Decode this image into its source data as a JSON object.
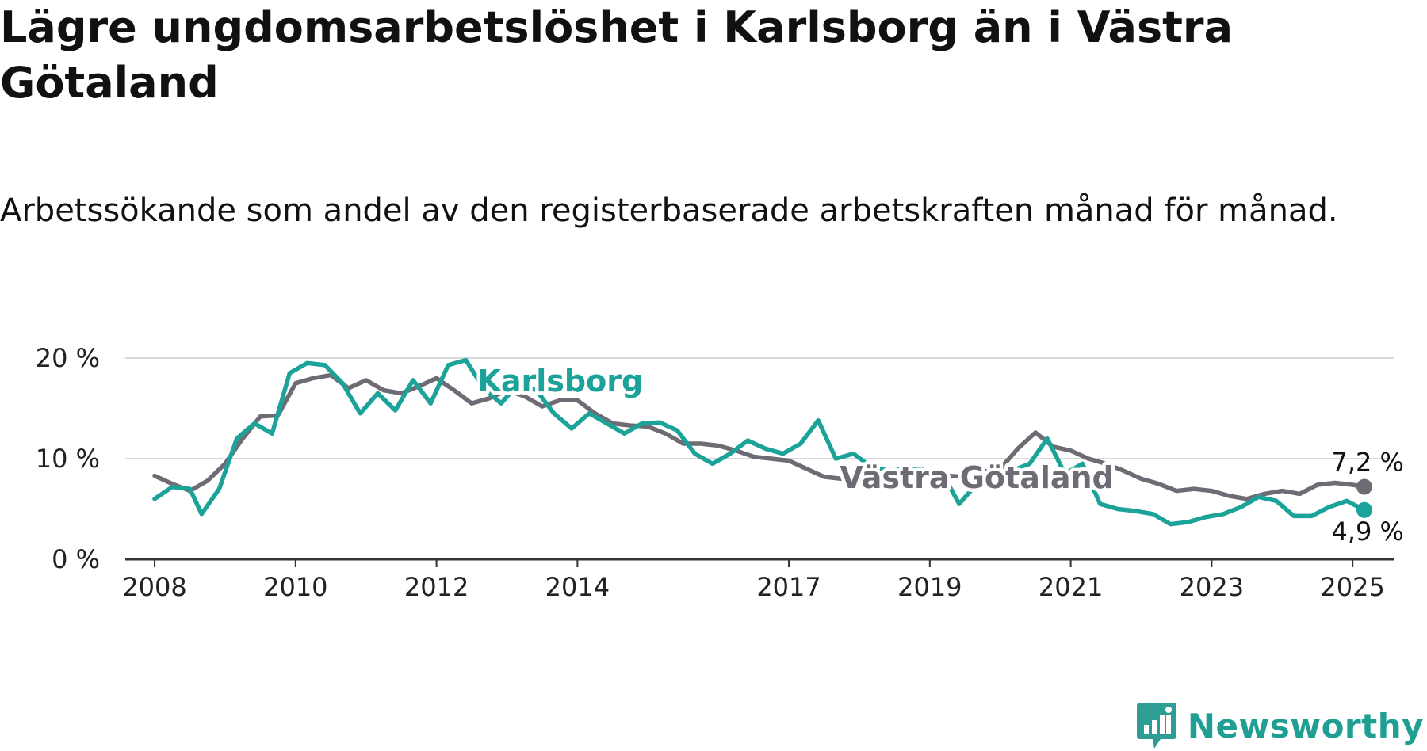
{
  "title": "Lägre ungdomsarbetslöshet i Karlsborg än i Västra Götaland",
  "subtitle": "Arbetssökande som andel av den registerbaserade arbetskraften månad för månad.",
  "brand": {
    "name": "Newsworthy",
    "icon": "newsworthy-logo-icon"
  },
  "colors": {
    "karlsborg": "#1ba39a",
    "vastra": "#6f6b75",
    "grid": "#d9d9d9",
    "axis": "#333333"
  },
  "chart_data": {
    "type": "line",
    "title": "Lägre ungdomsarbetslöshet i Karlsborg än i Västra Götaland",
    "xlabel": "",
    "ylabel": "",
    "y_tick_labels": [
      "0 %",
      "10 %",
      "20 %"
    ],
    "x_tick_labels": [
      "2008",
      "2010",
      "2012",
      "2014",
      "2017",
      "2019",
      "2021",
      "2023",
      "2025"
    ],
    "ylim": [
      0,
      20
    ],
    "xlim": [
      "2007-08",
      "2025-08"
    ],
    "grid": true,
    "end_labels": {
      "Karlsborg": "4,9 %",
      "Västra Götaland": "7,2 %"
    },
    "series": [
      {
        "name": "Karlsborg",
        "color": "#1ba39a",
        "points": [
          [
            "2008-01",
            6.0
          ],
          [
            "2008-04",
            7.2
          ],
          [
            "2008-07",
            7.0
          ],
          [
            "2008-09",
            4.5
          ],
          [
            "2008-12",
            7.0
          ],
          [
            "2009-03",
            12.0
          ],
          [
            "2009-06",
            13.5
          ],
          [
            "2009-09",
            12.5
          ],
          [
            "2009-12",
            18.5
          ],
          [
            "2010-03",
            19.5
          ],
          [
            "2010-06",
            19.3
          ],
          [
            "2010-09",
            17.5
          ],
          [
            "2010-12",
            14.5
          ],
          [
            "2011-03",
            16.5
          ],
          [
            "2011-06",
            14.8
          ],
          [
            "2011-09",
            17.8
          ],
          [
            "2011-12",
            15.5
          ],
          [
            "2012-03",
            19.3
          ],
          [
            "2012-06",
            19.8
          ],
          [
            "2012-09",
            17.0
          ],
          [
            "2012-12",
            15.5
          ],
          [
            "2013-03",
            17.5
          ],
          [
            "2013-06",
            16.8
          ],
          [
            "2013-09",
            14.5
          ],
          [
            "2013-12",
            13.0
          ],
          [
            "2014-03",
            14.5
          ],
          [
            "2014-06",
            13.5
          ],
          [
            "2014-09",
            12.5
          ],
          [
            "2014-12",
            13.5
          ],
          [
            "2015-03",
            13.6
          ],
          [
            "2015-06",
            12.8
          ],
          [
            "2015-09",
            10.5
          ],
          [
            "2015-12",
            9.5
          ],
          [
            "2016-03",
            10.5
          ],
          [
            "2016-06",
            11.8
          ],
          [
            "2016-09",
            11.0
          ],
          [
            "2016-12",
            10.5
          ],
          [
            "2017-03",
            11.5
          ],
          [
            "2017-06",
            13.8
          ],
          [
            "2017-09",
            10.0
          ],
          [
            "2017-12",
            10.5
          ],
          [
            "2018-03",
            9.2
          ],
          [
            "2018-06",
            8.8
          ],
          [
            "2018-09",
            9.0
          ],
          [
            "2018-12",
            8.9
          ],
          [
            "2019-03",
            8.7
          ],
          [
            "2019-06",
            5.5
          ],
          [
            "2019-09",
            7.5
          ],
          [
            "2019-12",
            9.0
          ],
          [
            "2020-03",
            8.8
          ],
          [
            "2020-06",
            9.5
          ],
          [
            "2020-09",
            12.0
          ],
          [
            "2020-12",
            8.5
          ],
          [
            "2021-03",
            9.5
          ],
          [
            "2021-06",
            5.5
          ],
          [
            "2021-09",
            5.0
          ],
          [
            "2021-12",
            4.8
          ],
          [
            "2022-03",
            4.5
          ],
          [
            "2022-06",
            3.5
          ],
          [
            "2022-09",
            3.7
          ],
          [
            "2022-12",
            4.2
          ],
          [
            "2023-03",
            4.5
          ],
          [
            "2023-06",
            5.2
          ],
          [
            "2023-09",
            6.2
          ],
          [
            "2023-12",
            5.8
          ],
          [
            "2024-03",
            4.3
          ],
          [
            "2024-06",
            4.3
          ],
          [
            "2024-09",
            5.2
          ],
          [
            "2024-12",
            5.8
          ],
          [
            "2025-03",
            4.9
          ]
        ]
      },
      {
        "name": "Västra Götaland",
        "color": "#6f6b75",
        "points": [
          [
            "2008-01",
            8.3
          ],
          [
            "2008-04",
            7.5
          ],
          [
            "2008-07",
            6.8
          ],
          [
            "2008-10",
            7.8
          ],
          [
            "2009-01",
            9.5
          ],
          [
            "2009-04",
            12.0
          ],
          [
            "2009-07",
            14.2
          ],
          [
            "2009-10",
            14.3
          ],
          [
            "2010-01",
            17.5
          ],
          [
            "2010-04",
            18.0
          ],
          [
            "2010-07",
            18.3
          ],
          [
            "2010-10",
            17.0
          ],
          [
            "2011-01",
            17.8
          ],
          [
            "2011-04",
            16.8
          ],
          [
            "2011-07",
            16.5
          ],
          [
            "2011-10",
            17.2
          ],
          [
            "2012-01",
            18.0
          ],
          [
            "2012-04",
            16.8
          ],
          [
            "2012-07",
            15.5
          ],
          [
            "2012-10",
            16.0
          ],
          [
            "2013-01",
            16.8
          ],
          [
            "2013-04",
            16.2
          ],
          [
            "2013-07",
            15.2
          ],
          [
            "2013-10",
            15.8
          ],
          [
            "2014-01",
            15.8
          ],
          [
            "2014-04",
            14.5
          ],
          [
            "2014-07",
            13.5
          ],
          [
            "2014-10",
            13.3
          ],
          [
            "2015-01",
            13.2
          ],
          [
            "2015-04",
            12.5
          ],
          [
            "2015-07",
            11.5
          ],
          [
            "2015-10",
            11.5
          ],
          [
            "2016-01",
            11.3
          ],
          [
            "2016-04",
            10.8
          ],
          [
            "2016-07",
            10.2
          ],
          [
            "2016-10",
            10.0
          ],
          [
            "2017-01",
            9.8
          ],
          [
            "2017-04",
            9.0
          ],
          [
            "2017-07",
            8.2
          ],
          [
            "2017-10",
            8.0
          ],
          [
            "2018-01",
            8.2
          ],
          [
            "2018-04",
            8.5
          ],
          [
            "2018-07",
            8.6
          ],
          [
            "2018-10",
            8.4
          ],
          [
            "2019-01",
            8.5
          ],
          [
            "2019-04",
            8.3
          ],
          [
            "2019-07",
            8.2
          ],
          [
            "2019-10",
            8.7
          ],
          [
            "2020-01",
            9.0
          ],
          [
            "2020-04",
            11.0
          ],
          [
            "2020-07",
            12.6
          ],
          [
            "2020-10",
            11.2
          ],
          [
            "2021-01",
            10.8
          ],
          [
            "2021-04",
            10.0
          ],
          [
            "2021-07",
            9.5
          ],
          [
            "2021-10",
            8.8
          ],
          [
            "2022-01",
            8.0
          ],
          [
            "2022-04",
            7.5
          ],
          [
            "2022-07",
            6.8
          ],
          [
            "2022-10",
            7.0
          ],
          [
            "2023-01",
            6.8
          ],
          [
            "2023-04",
            6.3
          ],
          [
            "2023-07",
            6.0
          ],
          [
            "2023-10",
            6.5
          ],
          [
            "2024-01",
            6.8
          ],
          [
            "2024-04",
            6.5
          ],
          [
            "2024-07",
            7.4
          ],
          [
            "2024-10",
            7.6
          ],
          [
            "2025-01",
            7.4
          ],
          [
            "2025-03",
            7.2
          ]
        ]
      }
    ]
  }
}
